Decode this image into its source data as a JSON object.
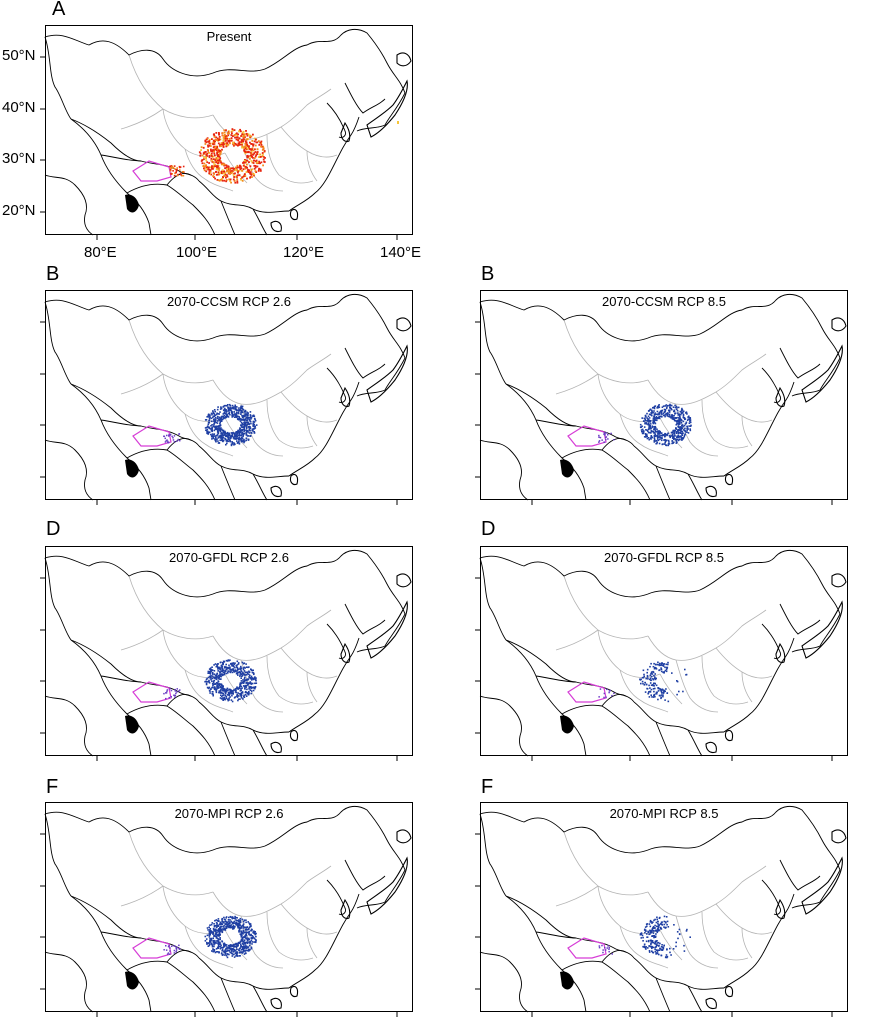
{
  "panels": [
    {
      "letter": "A",
      "title": "Present",
      "type": "present"
    },
    {
      "letter": "B",
      "title": "2070-CCSM RCP 2.6",
      "type": "future",
      "extent": 1.0
    },
    {
      "letter": "B",
      "title": "2070-CCSM RCP 8.5",
      "type": "future",
      "extent": 0.82
    },
    {
      "letter": "D",
      "title": "2070-GFDL RCP 2.6",
      "type": "future",
      "extent": 0.86
    },
    {
      "letter": "D",
      "title": "2070-GFDL RCP 8.5",
      "type": "future",
      "extent": 0.45
    },
    {
      "letter": "F",
      "title": "2070-MPI RCP 2.6",
      "type": "future",
      "extent": 1.0
    },
    {
      "letter": "F",
      "title": "2070-MPI RCP 8.5",
      "type": "future",
      "extent": 0.55
    }
  ],
  "axes": {
    "lat_labels": [
      "50°N",
      "40°N",
      "30°N",
      "20°N"
    ],
    "lon_labels": [
      "80°E",
      "100°E",
      "120°E",
      "140°E"
    ]
  },
  "colors": {
    "present_high": "#e8250f",
    "present_mid": "#f58a1c",
    "present_low": "#f7c63a",
    "future": "#1f3fa3",
    "region_outline": "#d63cd6",
    "border": "#000000",
    "province": "#b4b4b4"
  }
}
